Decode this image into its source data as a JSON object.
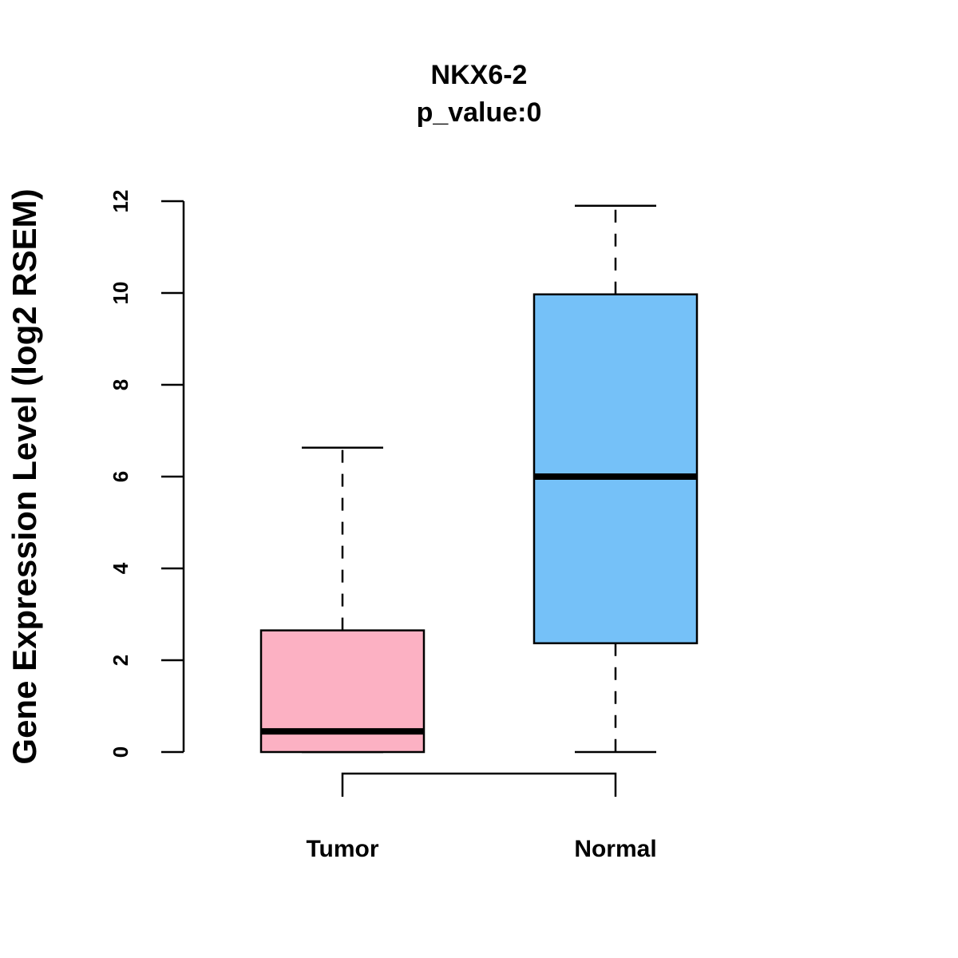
{
  "chart_data": {
    "type": "boxplot",
    "title": "NKX6-2",
    "subtitle": "p_value:0",
    "xlabel": "",
    "ylabel": "Gene Expression Level (log2 RSEM)",
    "ylim": [
      0,
      12
    ],
    "yticks": [
      0,
      2,
      4,
      6,
      8,
      10,
      12
    ],
    "ytick_labels": [
      "0",
      "2",
      "4",
      "6",
      "8",
      "10",
      "12"
    ],
    "grid": false,
    "categories": [
      "Tumor",
      "Normal"
    ],
    "boxes": [
      {
        "name": "Tumor",
        "min": 0,
        "q1": 0,
        "median": 0.45,
        "q3": 2.65,
        "max": 6.63,
        "color": "#FCB1C3"
      },
      {
        "name": "Normal",
        "min": 0,
        "q1": 2.37,
        "median": 6.0,
        "q3": 9.97,
        "max": 11.9,
        "color": "#75C1F8"
      }
    ],
    "comparison_bracket": [
      "Tumor",
      "Normal"
    ]
  }
}
